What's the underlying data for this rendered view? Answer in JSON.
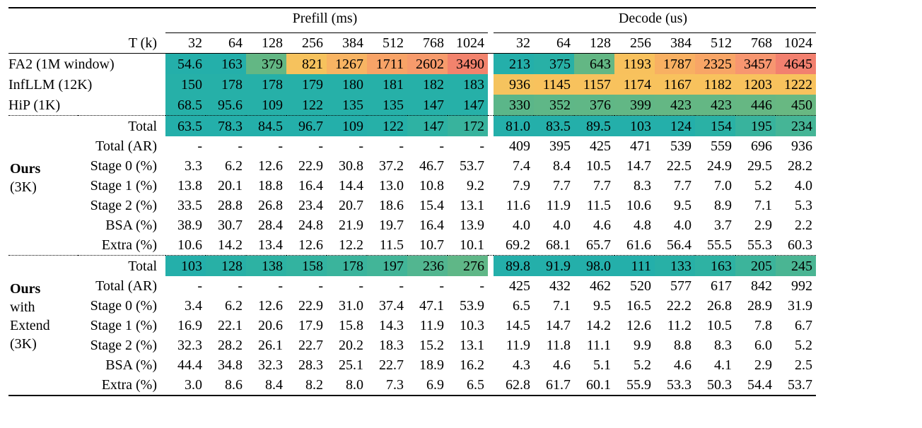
{
  "header": {
    "prefill_label": "Prefill (ms)",
    "decode_label": "Decode (us)",
    "t_label": "T (k)",
    "columns": [
      "32",
      "64",
      "128",
      "256",
      "384",
      "512",
      "768",
      "1024"
    ]
  },
  "baselines": [
    {
      "label": "FA2 (1M window)",
      "prefill": [
        "54.6",
        "163",
        "379",
        "821",
        "1267",
        "1711",
        "2602",
        "3490"
      ],
      "decode": [
        "213",
        "375",
        "643",
        "1193",
        "1787",
        "2325",
        "3457",
        "4645"
      ],
      "prefill_colors": [
        "#24afaa",
        "#24afaa",
        "#63b784",
        "#f6c25d",
        "#f8b463",
        "#f8a367",
        "#f79b6c",
        "#f2836d"
      ],
      "decode_colors": [
        "#24afaa",
        "#28b0a6",
        "#63b784",
        "#f8c15d",
        "#f8b062",
        "#f8a566",
        "#f79670",
        "#f2806f"
      ]
    },
    {
      "label": "InfLLM (12K)",
      "prefill": [
        "150",
        "178",
        "178",
        "179",
        "180",
        "181",
        "182",
        "183"
      ],
      "decode": [
        "936",
        "1145",
        "1157",
        "1174",
        "1167",
        "1182",
        "1203",
        "1222"
      ],
      "prefill_colors": [
        "#26b0a8",
        "#26b0a8",
        "#26b0a8",
        "#26b0a8",
        "#26b0a8",
        "#26b0a8",
        "#26b0a8",
        "#26b0a8"
      ],
      "decode_colors": [
        "#f5c35e",
        "#f8c25d",
        "#f8c25d",
        "#f8c25d",
        "#f8c25d",
        "#f8c25d",
        "#f8c25d",
        "#f8c25d"
      ]
    },
    {
      "label": "HiP (1K)",
      "prefill": [
        "68.5",
        "95.6",
        "109",
        "122",
        "135",
        "135",
        "147",
        "147"
      ],
      "decode": [
        "330",
        "352",
        "376",
        "399",
        "423",
        "423",
        "446",
        "450"
      ],
      "prefill_colors": [
        "#26b0a8",
        "#26b0a8",
        "#26b0a8",
        "#26b0a8",
        "#26b0a8",
        "#26b0a8",
        "#26b0a8",
        "#26b0a8"
      ],
      "decode_colors": [
        "#5bb689",
        "#5fb787",
        "#60b786",
        "#62b785",
        "#64b784",
        "#64b784",
        "#66b783",
        "#68b882"
      ]
    }
  ],
  "ours": {
    "group_lines": [
      "Ours",
      "(3K)"
    ],
    "total": {
      "label": "Total",
      "prefill": [
        "63.5",
        "78.3",
        "84.5",
        "96.7",
        "109",
        "122",
        "147",
        "172"
      ],
      "decode": [
        "81.0",
        "83.5",
        "89.5",
        "103",
        "124",
        "154",
        "195",
        "234"
      ],
      "prefill_colors": [
        "#24afaa",
        "#24afaa",
        "#24afaa",
        "#24afaa",
        "#24afaa",
        "#26b0a8",
        "#2eb2a3",
        "#38b39d"
      ],
      "decode_colors": [
        "#24afaa",
        "#24afaa",
        "#24afaa",
        "#24afaa",
        "#24afaa",
        "#2ab1a5",
        "#38b39d",
        "#45b596"
      ]
    },
    "rows": [
      {
        "label": "Total (AR)",
        "prefill": [
          "-",
          "-",
          "-",
          "-",
          "-",
          "-",
          "-",
          "-"
        ],
        "decode": [
          "409",
          "395",
          "425",
          "471",
          "539",
          "559",
          "696",
          "936"
        ]
      },
      {
        "label": "Stage 0 (%)",
        "prefill": [
          "3.3",
          "6.2",
          "12.6",
          "22.9",
          "30.8",
          "37.2",
          "46.7",
          "53.7"
        ],
        "decode": [
          "7.4",
          "8.4",
          "10.5",
          "14.7",
          "22.5",
          "24.9",
          "29.5",
          "28.2"
        ]
      },
      {
        "label": "Stage 1 (%)",
        "prefill": [
          "13.8",
          "20.1",
          "18.8",
          "16.4",
          "14.4",
          "13.0",
          "10.8",
          "9.2"
        ],
        "decode": [
          "7.9",
          "7.7",
          "7.7",
          "8.3",
          "7.7",
          "7.0",
          "5.2",
          "4.0"
        ]
      },
      {
        "label": "Stage 2 (%)",
        "prefill": [
          "33.5",
          "28.8",
          "26.8",
          "23.4",
          "20.7",
          "18.6",
          "15.4",
          "13.1"
        ],
        "decode": [
          "11.6",
          "11.9",
          "11.5",
          "10.6",
          "9.5",
          "8.9",
          "7.1",
          "5.3"
        ]
      },
      {
        "label": "BSA (%)",
        "prefill": [
          "38.9",
          "30.7",
          "28.4",
          "24.8",
          "21.9",
          "19.7",
          "16.4",
          "13.9"
        ],
        "decode": [
          "4.0",
          "4.0",
          "4.6",
          "4.8",
          "4.0",
          "3.7",
          "2.9",
          "2.2"
        ]
      },
      {
        "label": "Extra (%)",
        "prefill": [
          "10.6",
          "14.2",
          "13.4",
          "12.6",
          "12.2",
          "11.5",
          "10.7",
          "10.1"
        ],
        "decode": [
          "69.2",
          "68.1",
          "65.7",
          "61.6",
          "56.4",
          "55.5",
          "55.3",
          "60.3"
        ]
      }
    ]
  },
  "ours_extend": {
    "group_lines": [
      "Ours",
      "with",
      "Extend",
      "(3K)"
    ],
    "total": {
      "label": "Total",
      "prefill": [
        "103",
        "128",
        "138",
        "158",
        "178",
        "197",
        "236",
        "276"
      ],
      "decode": [
        "89.8",
        "91.9",
        "98.0",
        "111",
        "133",
        "163",
        "205",
        "245"
      ],
      "prefill_colors": [
        "#24afaa",
        "#28b0a6",
        "#2db2a3",
        "#33b3a0",
        "#3ab49c",
        "#42b598",
        "#52b690",
        "#5fb787"
      ],
      "decode_colors": [
        "#24afaa",
        "#24afaa",
        "#24afaa",
        "#24afaa",
        "#28b0a6",
        "#2eb2a3",
        "#3cb49b",
        "#4ab593"
      ]
    },
    "rows": [
      {
        "label": "Total (AR)",
        "prefill": [
          "-",
          "-",
          "-",
          "-",
          "-",
          "-",
          "-",
          "-"
        ],
        "decode": [
          "425",
          "432",
          "462",
          "520",
          "577",
          "617",
          "842",
          "992"
        ]
      },
      {
        "label": "Stage 0 (%)",
        "prefill": [
          "3.4",
          "6.2",
          "12.6",
          "22.9",
          "31.0",
          "37.4",
          "47.1",
          "53.9"
        ],
        "decode": [
          "6.5",
          "7.1",
          "9.5",
          "16.5",
          "22.2",
          "26.8",
          "28.9",
          "31.9"
        ]
      },
      {
        "label": "Stage 1 (%)",
        "prefill": [
          "16.9",
          "22.1",
          "20.6",
          "17.9",
          "15.8",
          "14.3",
          "11.9",
          "10.3"
        ],
        "decode": [
          "14.5",
          "14.7",
          "14.2",
          "12.6",
          "11.2",
          "10.5",
          "7.8",
          "6.7"
        ]
      },
      {
        "label": "Stage 2 (%)",
        "prefill": [
          "32.3",
          "28.2",
          "26.1",
          "22.7",
          "20.2",
          "18.3",
          "15.2",
          "13.1"
        ],
        "decode": [
          "11.9",
          "11.8",
          "11.1",
          "9.9",
          "8.8",
          "8.3",
          "6.0",
          "5.2"
        ]
      },
      {
        "label": "BSA (%)",
        "prefill": [
          "44.4",
          "34.8",
          "32.3",
          "28.3",
          "25.1",
          "22.7",
          "18.9",
          "16.2"
        ],
        "decode": [
          "4.3",
          "4.6",
          "5.1",
          "5.2",
          "4.6",
          "4.1",
          "2.9",
          "2.5"
        ]
      },
      {
        "label": "Extra (%)",
        "prefill": [
          "3.0",
          "8.6",
          "8.4",
          "8.2",
          "8.0",
          "7.3",
          "6.9",
          "6.5"
        ],
        "decode": [
          "62.8",
          "61.7",
          "60.1",
          "55.9",
          "53.3",
          "50.3",
          "54.4",
          "53.7"
        ]
      }
    ]
  }
}
